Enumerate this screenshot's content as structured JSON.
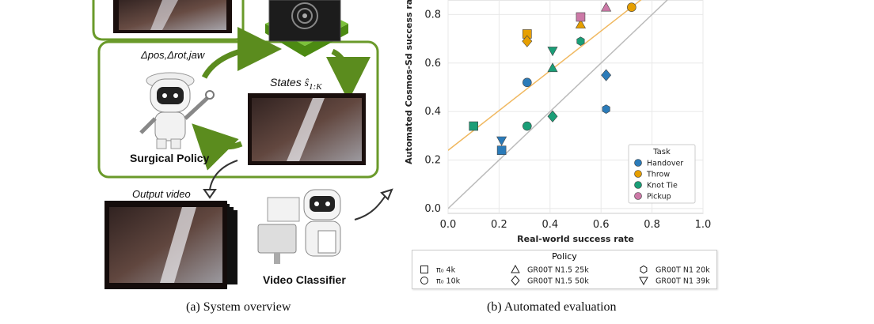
{
  "panel_a": {
    "caption": "(a) System overview",
    "action_label": "Δpos,Δrot,jaw",
    "states_label": "States",
    "states_math": "ŝ",
    "states_sub": "1:K",
    "policy_label": "Surgical Policy",
    "output_label": "Output video",
    "classifier_label": "Video Classifier",
    "colors": {
      "green_border": "#6a9a2a",
      "arrow_green": "#5b8c1e"
    }
  },
  "panel_b": {
    "caption": "(b) Automated evaluation",
    "legend_task_title": "Task",
    "legend_policy_title": "Policy",
    "policy_entries": [
      {
        "marker": "square",
        "label": "π₀ 4k"
      },
      {
        "marker": "triangle-up",
        "label": "GR00T N1.5 25k"
      },
      {
        "marker": "hexagon",
        "label": "GR00T N1 20k"
      },
      {
        "marker": "circle",
        "label": "π₀ 10k"
      },
      {
        "marker": "diamond",
        "label": "GR00T N1.5 50k"
      },
      {
        "marker": "triangle-down",
        "label": "GR00T N1 39k"
      }
    ]
  },
  "chart_data": {
    "type": "scatter",
    "xlabel": "Real-world success rate",
    "ylabel": "Automated Cosmos-Sd success rate",
    "xlim": [
      0,
      1.0
    ],
    "ylim": [
      -0.02,
      0.86
    ],
    "xticks": [
      "0.0",
      "0.2",
      "0.4",
      "0.6",
      "0.8",
      "1.0"
    ],
    "yticks": [
      "0.0",
      "0.2",
      "0.4",
      "0.6",
      "0.8"
    ],
    "grid": true,
    "legend_position": "bottom-right",
    "series": [
      {
        "name": "Handover",
        "color": "#2b7bb9",
        "points": [
          {
            "x": 0.21,
            "y": 0.24,
            "marker": "square"
          },
          {
            "x": 0.21,
            "y": 0.28,
            "marker": "triangle-down"
          },
          {
            "x": 0.31,
            "y": 0.52,
            "marker": "circle"
          },
          {
            "x": 0.62,
            "y": 0.55,
            "marker": "diamond"
          },
          {
            "x": 0.62,
            "y": 0.41,
            "marker": "hexagon"
          }
        ]
      },
      {
        "name": "Throw",
        "color": "#e69f00",
        "points": [
          {
            "x": 0.31,
            "y": 0.72,
            "marker": "square"
          },
          {
            "x": 0.31,
            "y": 0.69,
            "marker": "diamond"
          },
          {
            "x": 0.52,
            "y": 0.76,
            "marker": "triangle-up"
          },
          {
            "x": 0.72,
            "y": 0.83,
            "marker": "circle"
          }
        ]
      },
      {
        "name": "Knot Tie",
        "color": "#1a9e77",
        "points": [
          {
            "x": 0.1,
            "y": 0.34,
            "marker": "square"
          },
          {
            "x": 0.31,
            "y": 0.34,
            "marker": "circle"
          },
          {
            "x": 0.41,
            "y": 0.38,
            "marker": "diamond"
          },
          {
            "x": 0.41,
            "y": 0.58,
            "marker": "triangle-up"
          },
          {
            "x": 0.41,
            "y": 0.65,
            "marker": "triangle-down"
          },
          {
            "x": 0.52,
            "y": 0.69,
            "marker": "hexagon"
          }
        ]
      },
      {
        "name": "Pickup",
        "color": "#cc79a7",
        "points": [
          {
            "x": 0.52,
            "y": 0.79,
            "marker": "square"
          },
          {
            "x": 0.62,
            "y": 0.83,
            "marker": "triangle-up"
          }
        ]
      }
    ],
    "fit_line": {
      "color": "#f0b860",
      "intercept": 0.24,
      "slope": 0.82
    },
    "identity_line": {
      "color": "#bbbbbb"
    }
  }
}
